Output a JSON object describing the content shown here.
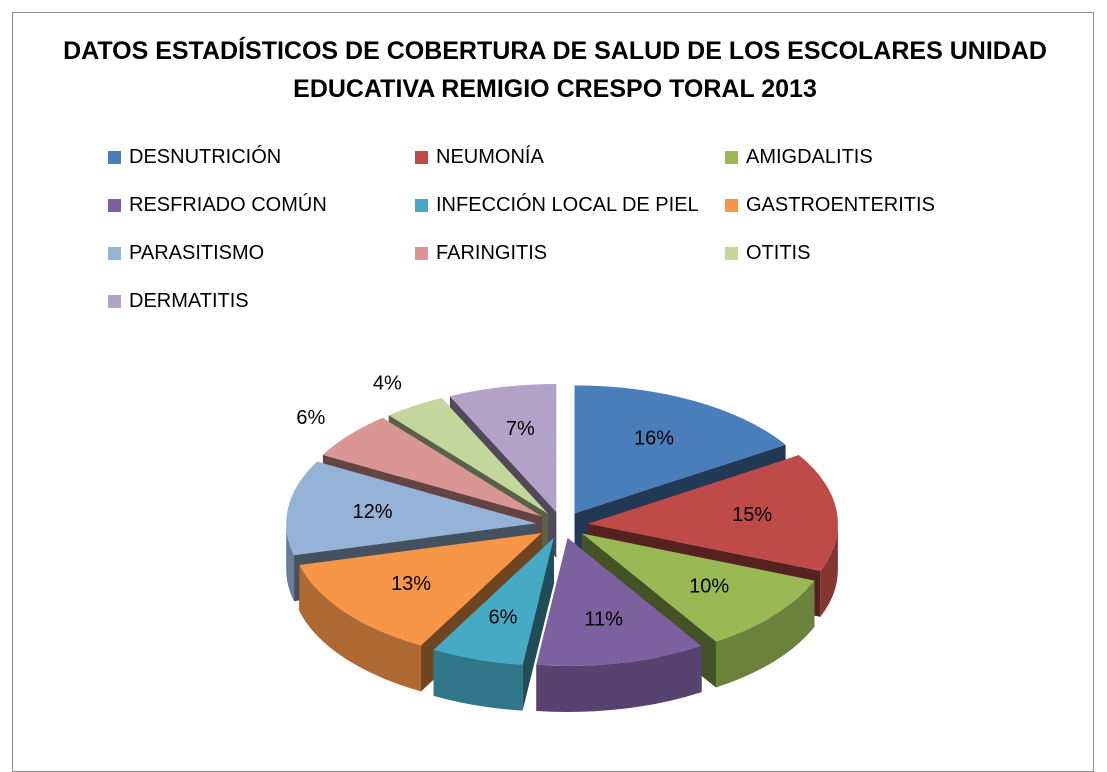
{
  "chart_data": {
    "type": "pie",
    "title": "DATOS ESTADÍSTICOS DE COBERTURA DE SALUD DE LOS ESCOLARES UNIDAD EDUCATIVA REMIGIO CRESPO TORAL 2013",
    "categories": [
      "DESNUTRICIÓN",
      "NEUMONÍA",
      "AMIGDALITIS",
      "RESFRIADO COMÚN",
      "INFECCIÓN LOCAL DE PIEL",
      "GASTROENTERITIS",
      "PARASITISMO",
      "FARINGITIS",
      "OTITIS",
      "DERMATITIS"
    ],
    "values": [
      16,
      15,
      10,
      11,
      6,
      13,
      12,
      6,
      4,
      7
    ],
    "value_labels": [
      "16%",
      "15%",
      "10%",
      "11%",
      "6%",
      "13%",
      "12%",
      "6%",
      "4%",
      "7%"
    ],
    "colors": [
      "#4a7ebb",
      "#be4b48",
      "#98b954",
      "#7d60a0",
      "#46aac4",
      "#f79646",
      "#95b3d7",
      "#d99694",
      "#c3d69b",
      "#b3a2c7"
    ],
    "legend": "top"
  }
}
